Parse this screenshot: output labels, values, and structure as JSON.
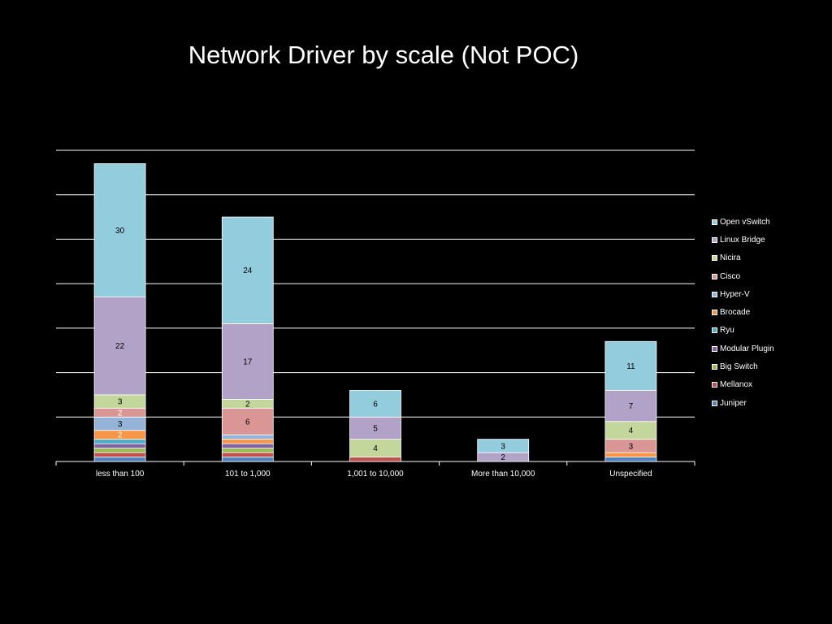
{
  "chart_data": {
    "type": "bar",
    "stacked": true,
    "title": "Network Driver by scale (Not POC)",
    "xlabel": "",
    "ylabel": "",
    "ylim": [
      0,
      70
    ],
    "grid": true,
    "legend_position": "right",
    "categories": [
      "less than 100",
      "101 to 1,000",
      "1,001 to 10,000",
      "More than 10,000",
      "Unspecified"
    ],
    "series": [
      {
        "name": "Juniper",
        "color": "#4f81bd",
        "values": [
          1,
          1,
          0,
          0,
          1
        ]
      },
      {
        "name": "Mellanox",
        "color": "#c0504d",
        "values": [
          1,
          1,
          1,
          0,
          0
        ]
      },
      {
        "name": "Big Switch",
        "color": "#9bbb59",
        "values": [
          1,
          1,
          0,
          0,
          0
        ]
      },
      {
        "name": "Modular Plugin",
        "color": "#8064a2",
        "values": [
          1,
          1,
          0,
          0,
          0
        ]
      },
      {
        "name": "Ryu",
        "color": "#4bacc6",
        "values": [
          1,
          0,
          0,
          0,
          0
        ]
      },
      {
        "name": "Brocade",
        "color": "#f79646",
        "values": [
          2,
          1,
          0,
          0,
          1
        ]
      },
      {
        "name": "Hyper-V",
        "color": "#95b3d7",
        "values": [
          3,
          1,
          0,
          0,
          0
        ]
      },
      {
        "name": "Cisco",
        "color": "#d99694",
        "values": [
          2,
          6,
          0,
          0,
          3
        ]
      },
      {
        "name": "Nicira",
        "color": "#c3d69b",
        "values": [
          3,
          2,
          4,
          0,
          4
        ]
      },
      {
        "name": "Linux Bridge",
        "color": "#b2a2c7",
        "values": [
          22,
          17,
          5,
          2,
          7
        ]
      },
      {
        "name": "Open vSwitch",
        "color": "#93cddd",
        "values": [
          30,
          24,
          6,
          3,
          11
        ]
      }
    ],
    "data_labels": [
      [
        "",
        "",
        "",
        "",
        "",
        "2",
        "3",
        "2",
        "3",
        "22",
        "30"
      ],
      [
        "",
        "",
        "",
        "",
        "",
        "",
        "",
        "6",
        "2",
        "17",
        "24"
      ],
      [
        "",
        "",
        "",
        "",
        "",
        "",
        "",
        "",
        "4",
        "5",
        "6"
      ],
      [
        "",
        "",
        "",
        "",
        "",
        "",
        "",
        "",
        "",
        "2",
        "3"
      ],
      [
        "",
        "",
        "",
        "",
        "",
        "",
        "",
        "3",
        "4",
        "7",
        "11"
      ]
    ],
    "legend_order": [
      "Open vSwitch",
      "Linux Bridge",
      "Nicira",
      "Cisco",
      "Hyper-V",
      "Brocade",
      "Ryu",
      "Modular Plugin",
      "Big Switch",
      "Mellanox",
      "Juniper"
    ]
  }
}
